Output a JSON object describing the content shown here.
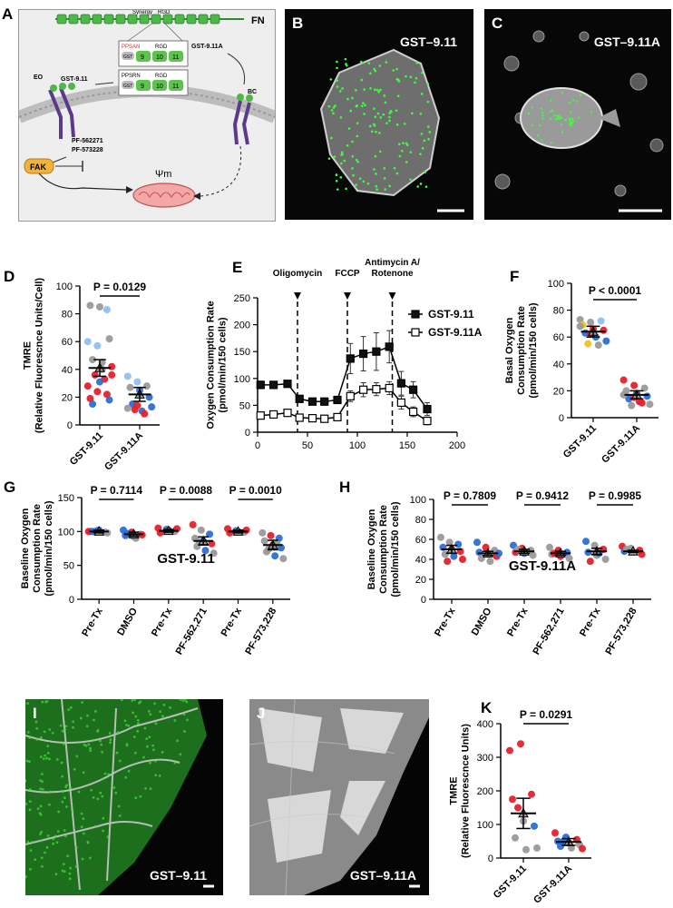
{
  "panels": {
    "A": {
      "label": "A",
      "fn_label": "FN",
      "synergy_label": "Synergy",
      "rgd_label": "RGD",
      "ppsan_label": "PPSAN",
      "ppsrn_label": "PPSRN",
      "gst_label": "GST",
      "domains": [
        "9",
        "10",
        "11"
      ],
      "gst911a_label": "GST-9.11A",
      "gst911_label": "GST-9.11",
      "eo_label": "EO",
      "bc_label": "BC",
      "inhibitors": [
        "PF-562271",
        "PF-573228"
      ],
      "fak_label": "FAK",
      "psi_label": "Ψm"
    },
    "B": {
      "label": "B",
      "caption": "GST–9.11"
    },
    "C": {
      "label": "C",
      "caption": "GST–9.11A"
    },
    "I": {
      "label": "I",
      "caption": "GST–9.11"
    },
    "J": {
      "label": "J",
      "caption": "GST–9.11A"
    }
  },
  "colors": {
    "red": "#e8202a",
    "blue": "#2a6fd6",
    "gray": "#9a9a9a",
    "light_blue": "#8ec1ee",
    "yellow": "#f2c21b",
    "green": "#3dbf2c",
    "purple": "#5b3a8c"
  },
  "chart_data": [
    {
      "id": "D",
      "label": "D",
      "type": "scatter",
      "ylabel": "TMRE\n(Relative Fluorescnce Units/Cell)",
      "ylim": [
        0,
        100
      ],
      "yticks": [
        0,
        20,
        40,
        60,
        80,
        100
      ],
      "categories": [
        "GST-9.11",
        "GST-9.11A"
      ],
      "means": [
        41,
        22
      ],
      "sems": [
        6,
        5
      ],
      "pvalues": [
        {
          "text": "P = 0.0129",
          "from": 0,
          "to": 1
        }
      ],
      "points": [
        [
          [
            60,
            "light_blue"
          ],
          [
            57,
            "light_blue"
          ],
          [
            83,
            "light_blue"
          ],
          [
            86,
            "gray"
          ],
          [
            85,
            "gray"
          ],
          [
            62,
            "gray"
          ],
          [
            47,
            "gray"
          ],
          [
            45,
            "gray"
          ],
          [
            42,
            "red"
          ],
          [
            36,
            "red"
          ],
          [
            33,
            "red"
          ],
          [
            28,
            "red"
          ],
          [
            24,
            "red"
          ],
          [
            22,
            "red"
          ],
          [
            19,
            "red"
          ],
          [
            31,
            "blue"
          ],
          [
            18,
            "blue"
          ],
          [
            15,
            "blue"
          ],
          [
            40,
            "gray"
          ],
          [
            36,
            "red"
          ]
        ],
        [
          [
            35,
            "light_blue"
          ],
          [
            31,
            "light_blue"
          ],
          [
            28,
            "gray"
          ],
          [
            27,
            "gray"
          ],
          [
            25,
            "blue"
          ],
          [
            20,
            "blue"
          ],
          [
            15,
            "blue"
          ],
          [
            10,
            "blue"
          ],
          [
            13,
            "blue"
          ],
          [
            11,
            "red"
          ],
          [
            8,
            "red"
          ],
          [
            12,
            "gray"
          ],
          [
            14,
            "red"
          ]
        ]
      ]
    },
    {
      "id": "E",
      "label": "E",
      "type": "line",
      "ylabel": "Oxygen Consumption Rate\n(pmol/min/150 cells)",
      "xlim": [
        0,
        200
      ],
      "ylim": [
        0,
        250
      ],
      "xticks": [
        0,
        50,
        100,
        150,
        200
      ],
      "yticks": [
        0,
        50,
        100,
        150,
        200,
        250
      ],
      "injections": [
        {
          "x": 40,
          "text": "Oligomycin"
        },
        {
          "x": 90,
          "text": "FCCP"
        },
        {
          "x": 135,
          "text": "Antimycin A/\nRotenone"
        }
      ],
      "x": [
        3,
        16,
        30,
        42,
        55,
        67,
        80,
        93,
        106,
        119,
        132,
        144,
        156,
        170
      ],
      "series": [
        {
          "name": "GST-9.11",
          "fill": "#111111",
          "values": [
            88,
            88,
            90,
            62,
            57,
            57,
            60,
            137,
            146,
            150,
            159,
            91,
            79,
            43
          ],
          "err": [
            7,
            6,
            6,
            6,
            5,
            5,
            6,
            28,
            32,
            35,
            30,
            22,
            15,
            12
          ]
        },
        {
          "name": "GST-9.11A",
          "fill": "#ffffff",
          "values": [
            31,
            33,
            36,
            27,
            26,
            25,
            28,
            67,
            79,
            80,
            82,
            55,
            38,
            21
          ],
          "err": [
            5,
            5,
            5,
            4,
            4,
            4,
            5,
            10,
            13,
            12,
            12,
            12,
            9,
            7
          ]
        }
      ]
    },
    {
      "id": "F",
      "label": "F",
      "type": "scatter",
      "ylabel": "Basal Oxygen\nConsumption Rate\n(pmol/min/150 cells)",
      "ylim": [
        0,
        100
      ],
      "yticks": [
        0,
        20,
        40,
        60,
        80,
        100
      ],
      "categories": [
        "GST-9.11",
        "GST-9.11A"
      ],
      "means": [
        64,
        17
      ],
      "sems": [
        4,
        3
      ],
      "pvalues": [
        {
          "text": "P < 0.0001",
          "from": 0,
          "to": 1
        }
      ],
      "points": [
        [
          [
            73,
            "gray"
          ],
          [
            71,
            "gray"
          ],
          [
            72,
            "light_blue"
          ],
          [
            69,
            "yellow"
          ],
          [
            66,
            "red"
          ],
          [
            65,
            "red"
          ],
          [
            63,
            "blue"
          ],
          [
            60,
            "blue"
          ],
          [
            57,
            "blue"
          ],
          [
            55,
            "yellow"
          ],
          [
            54,
            "gray"
          ],
          [
            68,
            "gray"
          ],
          [
            62,
            "red"
          ]
        ],
        [
          [
            28,
            "red"
          ],
          [
            24,
            "red"
          ],
          [
            22,
            "gray"
          ],
          [
            20,
            "gray"
          ],
          [
            18,
            "blue"
          ],
          [
            16,
            "blue"
          ],
          [
            14,
            "blue"
          ],
          [
            12,
            "red"
          ],
          [
            10,
            "gray"
          ],
          [
            9,
            "gray"
          ],
          [
            11,
            "red"
          ],
          [
            17,
            "gray"
          ],
          [
            15,
            "red"
          ]
        ]
      ]
    },
    {
      "id": "G",
      "label": "G",
      "type": "scatter",
      "ylabel": "Baseline Oxygen\nConsumption Rate\n(pmol/min/150 cells)",
      "title": "GST-9.11",
      "ylim": [
        0,
        150
      ],
      "yticks": [
        0,
        50,
        100,
        150
      ],
      "categories": [
        "Pre-Tx",
        "DMSO",
        "Pre-Tx",
        "PF-562,271",
        "Pre-Tx",
        "PF-573,228"
      ],
      "means": [
        100,
        96,
        101,
        86,
        100,
        80
      ],
      "sems": [
        2,
        3,
        2,
        6,
        2,
        7
      ],
      "pvalues": [
        {
          "text": "P = 0.7114",
          "from": 0,
          "to": 1
        },
        {
          "text": "P = 0.0088",
          "from": 2,
          "to": 3
        },
        {
          "text": "P = 0.0010",
          "from": 4,
          "to": 5
        }
      ],
      "points": [
        [
          [
            100,
            "red"
          ],
          [
            101,
            "blue"
          ],
          [
            99,
            "gray"
          ],
          [
            100,
            "red"
          ],
          [
            102,
            "blue"
          ],
          [
            98,
            "gray"
          ],
          [
            100,
            "blue"
          ]
        ],
        [
          [
            102,
            "blue"
          ],
          [
            99,
            "red"
          ],
          [
            96,
            "gray"
          ],
          [
            94,
            "blue"
          ],
          [
            92,
            "gray"
          ],
          [
            95,
            "red"
          ],
          [
            97,
            "blue"
          ],
          [
            90,
            "gray"
          ]
        ],
        [
          [
            105,
            "red"
          ],
          [
            103,
            "blue"
          ],
          [
            100,
            "gray"
          ],
          [
            98,
            "red"
          ],
          [
            102,
            "blue"
          ],
          [
            104,
            "red"
          ]
        ],
        [
          [
            110,
            "red"
          ],
          [
            102,
            "gray"
          ],
          [
            96,
            "blue"
          ],
          [
            90,
            "gray"
          ],
          [
            86,
            "blue"
          ],
          [
            82,
            "red"
          ],
          [
            78,
            "gray"
          ],
          [
            72,
            "blue"
          ],
          [
            68,
            "gray"
          ],
          [
            85,
            "gray"
          ]
        ],
        [
          [
            104,
            "red"
          ],
          [
            101,
            "blue"
          ],
          [
            99,
            "gray"
          ],
          [
            98,
            "red"
          ],
          [
            100,
            "blue"
          ],
          [
            102,
            "red"
          ]
        ],
        [
          [
            98,
            "gray"
          ],
          [
            94,
            "red"
          ],
          [
            90,
            "blue"
          ],
          [
            86,
            "gray"
          ],
          [
            80,
            "red"
          ],
          [
            76,
            "blue"
          ],
          [
            70,
            "gray"
          ],
          [
            64,
            "blue"
          ],
          [
            60,
            "gray"
          ],
          [
            74,
            "gray"
          ],
          [
            82,
            "gray"
          ]
        ]
      ]
    },
    {
      "id": "H",
      "label": "H",
      "type": "scatter",
      "ylabel": "Baseline Oxygen\nConsumption Rate\n(pmol/min/150 cells)",
      "title": "GST-9.11A",
      "ylim": [
        0,
        100
      ],
      "yticks": [
        0,
        20,
        40,
        60,
        80,
        100
      ],
      "categories": [
        "Pre-Tx",
        "DMSO",
        "Pre-Tx",
        "PF-562,271",
        "Pre-Tx",
        "PF-573,228"
      ],
      "means": [
        50,
        46,
        48,
        46,
        48,
        48
      ],
      "sems": [
        4,
        2,
        2,
        2,
        3,
        1
      ],
      "pvalues": [
        {
          "text": "P = 0.7809",
          "from": 0,
          "to": 1
        },
        {
          "text": "P = 0.9412",
          "from": 2,
          "to": 3
        },
        {
          "text": "P = 0.9985",
          "from": 4,
          "to": 5
        }
      ],
      "points": [
        [
          [
            62,
            "gray"
          ],
          [
            57,
            "gray"
          ],
          [
            55,
            "blue"
          ],
          [
            52,
            "blue"
          ],
          [
            50,
            "red"
          ],
          [
            48,
            "red"
          ],
          [
            45,
            "gray"
          ],
          [
            43,
            "blue"
          ],
          [
            40,
            "red"
          ],
          [
            38,
            "red"
          ]
        ],
        [
          [
            57,
            "blue"
          ],
          [
            52,
            "red"
          ],
          [
            49,
            "gray"
          ],
          [
            47,
            "blue"
          ],
          [
            45,
            "gray"
          ],
          [
            43,
            "red"
          ],
          [
            41,
            "gray"
          ],
          [
            38,
            "gray"
          ],
          [
            46,
            "blue"
          ]
        ],
        [
          [
            54,
            "blue"
          ],
          [
            51,
            "red"
          ],
          [
            49,
            "gray"
          ],
          [
            47,
            "red"
          ],
          [
            46,
            "blue"
          ],
          [
            44,
            "gray"
          ],
          [
            50,
            "gray"
          ]
        ],
        [
          [
            52,
            "gray"
          ],
          [
            49,
            "red"
          ],
          [
            47,
            "blue"
          ],
          [
            45,
            "gray"
          ],
          [
            43,
            "red"
          ],
          [
            41,
            "gray"
          ],
          [
            46,
            "red"
          ]
        ],
        [
          [
            58,
            "blue"
          ],
          [
            54,
            "gray"
          ],
          [
            50,
            "red"
          ],
          [
            47,
            "blue"
          ],
          [
            44,
            "gray"
          ],
          [
            40,
            "gray"
          ],
          [
            38,
            "red"
          ],
          [
            46,
            "blue"
          ]
        ],
        [
          [
            53,
            "red"
          ],
          [
            51,
            "gray"
          ],
          [
            49,
            "red"
          ],
          [
            48,
            "blue"
          ],
          [
            47,
            "gray"
          ],
          [
            45,
            "red"
          ],
          [
            50,
            "gray"
          ]
        ]
      ]
    },
    {
      "id": "K",
      "label": "K",
      "type": "scatter",
      "ylabel": "TMRE\n(Relative Fluorescnce Units)",
      "ylim": [
        0,
        400
      ],
      "yticks": [
        0,
        100,
        200,
        300,
        400
      ],
      "categories": [
        "GST-9.11",
        "GST-9.11A"
      ],
      "means": [
        133,
        48
      ],
      "sems": [
        45,
        10
      ],
      "pvalues": [
        {
          "text": "P = 0.0291",
          "from": 0,
          "to": 1
        }
      ],
      "points": [
        [
          [
            320,
            "red"
          ],
          [
            340,
            "red"
          ],
          [
            190,
            "red"
          ],
          [
            175,
            "red"
          ],
          [
            110,
            "gray"
          ],
          [
            95,
            "blue"
          ],
          [
            60,
            "gray"
          ],
          [
            25,
            "gray"
          ],
          [
            30,
            "gray"
          ],
          [
            150,
            "red"
          ]
        ],
        [
          [
            75,
            "red"
          ],
          [
            62,
            "blue"
          ],
          [
            55,
            "red"
          ],
          [
            50,
            "blue"
          ],
          [
            45,
            "red"
          ],
          [
            40,
            "gray"
          ],
          [
            35,
            "blue"
          ],
          [
            30,
            "gray"
          ],
          [
            28,
            "red"
          ],
          [
            48,
            "blue"
          ]
        ]
      ]
    }
  ]
}
